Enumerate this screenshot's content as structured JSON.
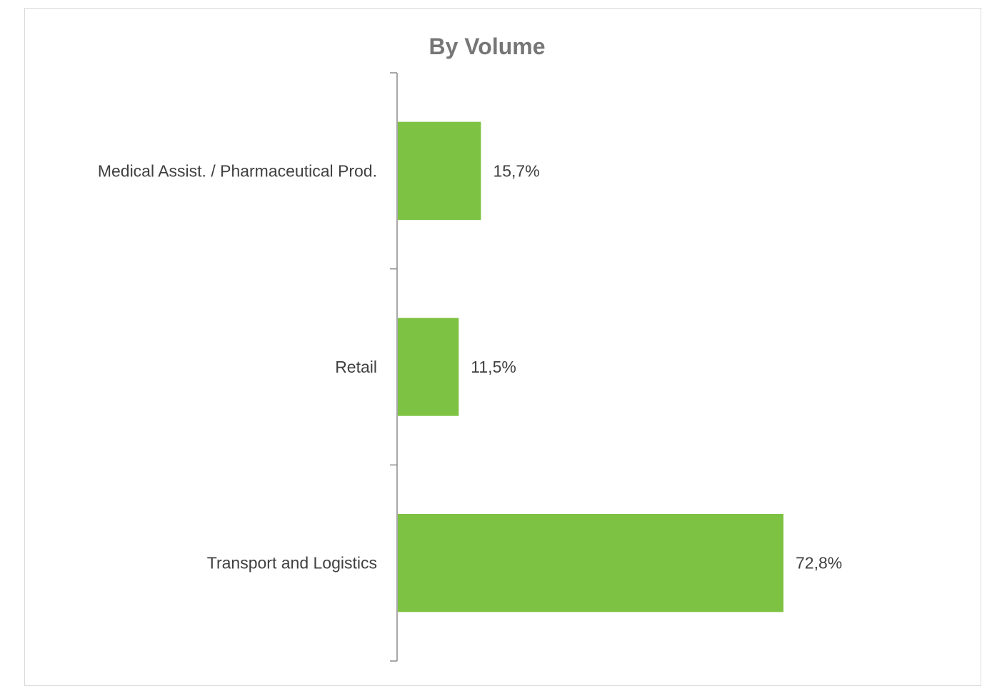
{
  "chart_data": {
    "type": "bar",
    "orientation": "horizontal",
    "title": "By Volume",
    "categories": [
      "Medical Assist. / Pharmaceutical Prod.",
      "Retail",
      "Transport and Logistics"
    ],
    "values": [
      15.7,
      11.5,
      72.8
    ],
    "data_labels": [
      "15,7%",
      "11,5%",
      "72,8%"
    ],
    "unit": "%",
    "xlim": [
      0,
      100
    ],
    "xaxis_visible": false,
    "grid": false,
    "legend": "none",
    "colors": {
      "bar": "#7dc242",
      "axis": "#8c8c8c",
      "title": "#767676",
      "text": "#404040"
    }
  }
}
